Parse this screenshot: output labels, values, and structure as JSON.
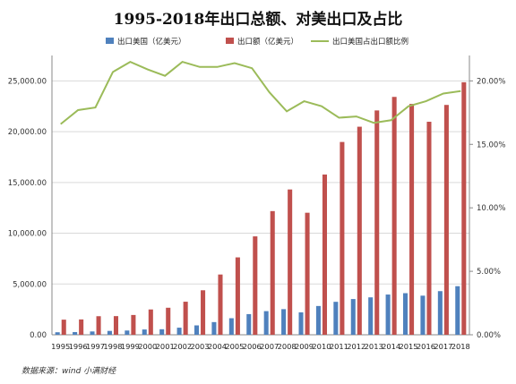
{
  "title": "1995-2018年出口总额、对美出口及占比",
  "source": "数据来源：wind 小满财经",
  "chart_data": {
    "type": "bar",
    "categories": [
      "1995",
      "1996",
      "1997",
      "1998",
      "1999",
      "2000",
      "2001",
      "2002",
      "2003",
      "2004",
      "2005",
      "2006",
      "2007",
      "2008",
      "2009",
      "2010",
      "2011",
      "2012",
      "2013",
      "2014",
      "2015",
      "2016",
      "2017",
      "2018"
    ],
    "series": [
      {
        "name": "出口美国（亿美元）",
        "type": "bar",
        "axis": "left",
        "color": "#4f81bd",
        "values": [
          247,
          267,
          327,
          380,
          419,
          521,
          543,
          699,
          924,
          1249,
          1629,
          2034,
          2327,
          2523,
          2208,
          2833,
          3245,
          3518,
          3684,
          3961,
          4095,
          3851,
          4297,
          4784
        ]
      },
      {
        "name": "出口额（亿美元）",
        "type": "bar",
        "axis": "left",
        "color": "#c0504d",
        "values": [
          1488,
          1511,
          1828,
          1837,
          1949,
          2492,
          2661,
          3256,
          4382,
          5933,
          7620,
          9689,
          12178,
          14307,
          12016,
          15778,
          18984,
          20487,
          22090,
          23423,
          22735,
          20976,
          22633,
          24867
        ]
      },
      {
        "name": "出口美国占出口额比例",
        "type": "line",
        "axis": "right",
        "color": "#9bbb59",
        "values": [
          16.6,
          17.7,
          17.9,
          20.7,
          21.5,
          20.9,
          20.4,
          21.5,
          21.1,
          21.1,
          21.4,
          21.0,
          19.1,
          17.6,
          18.4,
          18.0,
          17.1,
          17.2,
          16.7,
          16.9,
          18.0,
          18.4,
          19.0,
          19.2
        ]
      }
    ],
    "yleft": {
      "min": 0,
      "max": 27500,
      "ticks": [
        0,
        5000,
        10000,
        15000,
        20000,
        25000
      ],
      "tick_labels": [
        "0.00",
        "5,000.00",
        "10,000.00",
        "15,000.00",
        "20,000.00",
        "25,000.00"
      ]
    },
    "yright": {
      "min": 0,
      "max": 22.0,
      "ticks": [
        0,
        5,
        10,
        15,
        20
      ],
      "tick_labels": [
        "0.00%",
        "5.00%",
        "10.00%",
        "15.00%",
        "20.00%"
      ]
    },
    "legend_position": "top",
    "grid": "horizontal"
  }
}
